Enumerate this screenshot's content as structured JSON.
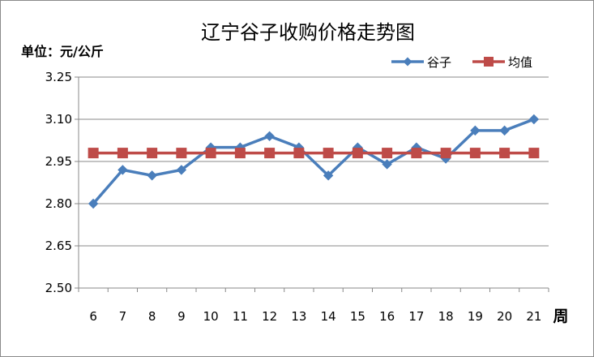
{
  "chart_data": {
    "type": "line",
    "title": "辽宁谷子收购价格走势图",
    "ylabel": "单位：元/公斤",
    "xlabel": "周",
    "categories": [
      "6",
      "7",
      "8",
      "9",
      "10",
      "11",
      "12",
      "13",
      "14",
      "15",
      "16",
      "17",
      "18",
      "19",
      "20",
      "21"
    ],
    "ylim": [
      2.5,
      3.25
    ],
    "yticks": [
      "2.50",
      "2.65",
      "2.80",
      "2.95",
      "3.10",
      "3.25"
    ],
    "grid": "horizontal",
    "legend": "top-right",
    "series": [
      {
        "name": "谷子",
        "color": "#4a7ebb",
        "marker": "diamond",
        "values": [
          2.8,
          2.92,
          2.9,
          2.92,
          3.0,
          3.0,
          3.04,
          3.0,
          2.9,
          3.0,
          2.94,
          3.0,
          2.96,
          3.06,
          3.06,
          3.1
        ]
      },
      {
        "name": "均值",
        "color": "#be4b48",
        "marker": "square",
        "values": [
          2.98,
          2.98,
          2.98,
          2.98,
          2.98,
          2.98,
          2.98,
          2.98,
          2.98,
          2.98,
          2.98,
          2.98,
          2.98,
          2.98,
          2.98,
          2.98
        ]
      }
    ]
  }
}
